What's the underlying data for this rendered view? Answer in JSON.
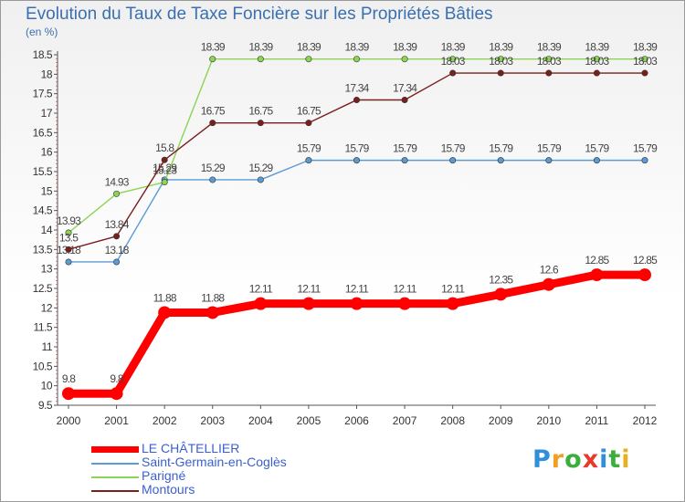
{
  "title": "Evolution du Taux de Taxe Foncière sur les Propriétés Bâties",
  "unit_label": "(en %)",
  "logo": {
    "letters": [
      {
        "ch": "P",
        "color": "#2f8fd8"
      },
      {
        "ch": "r",
        "color": "#f0a020"
      },
      {
        "ch": "o",
        "color": "#3cae3c"
      },
      {
        "ch": "x",
        "color": "#e83a2a"
      },
      {
        "ch": "i",
        "color": "#2f8fd8"
      },
      {
        "ch": "t",
        "color": "#3cae3c"
      },
      {
        "ch": "i",
        "color": "#e8b020"
      }
    ]
  },
  "chart_data": {
    "type": "line",
    "title": "Evolution du Taux de Taxe Foncière sur les Propriétés Bâties",
    "ylabel": "(en %)",
    "xlabel": "",
    "ylim": [
      9.5,
      18.5
    ],
    "ytick_step": 0.5,
    "yticks": [
      "9.5",
      "10",
      "10.5",
      "11",
      "11.5",
      "12",
      "12.5",
      "13",
      "13.5",
      "14",
      "14.5",
      "15",
      "15.5",
      "16",
      "16.5",
      "17",
      "17.5",
      "18",
      "18.5"
    ],
    "x": [
      "2000",
      "2001",
      "2002",
      "2003",
      "2004",
      "2005",
      "2006",
      "2007",
      "2008",
      "2009",
      "2010",
      "2011",
      "2012"
    ],
    "grid": false,
    "legend_position": "bottom-left",
    "series": [
      {
        "name": "LE CHÂTELLIER",
        "color": "#ff0000",
        "values": [
          9.8,
          9.8,
          11.88,
          11.88,
          12.11,
          12.11,
          12.11,
          12.11,
          12.11,
          12.35,
          12.6,
          12.85,
          12.85
        ],
        "labels": [
          "9.8",
          "9.8",
          "11.88",
          "11.88",
          "12.11",
          "12.11",
          "12.11",
          "12.11",
          "12.11",
          "12.35",
          "12.6",
          "12.85",
          "12.85"
        ]
      },
      {
        "name": "Saint-Germain-en-Coglès",
        "color": "#5b9bd5",
        "values": [
          13.18,
          13.18,
          15.29,
          15.29,
          15.29,
          15.79,
          15.79,
          15.79,
          15.79,
          15.79,
          15.79,
          15.79,
          15.79
        ],
        "labels": [
          "13.18",
          "13.18",
          "15.29",
          "15.29",
          "15.29",
          "15.79",
          "15.79",
          "15.79",
          "15.79",
          "15.79",
          "15.79",
          "15.79",
          "15.79"
        ]
      },
      {
        "name": "Parigné",
        "color": "#8bd455",
        "values": [
          13.93,
          14.93,
          15.23,
          18.39,
          18.39,
          18.39,
          18.39,
          18.39,
          18.39,
          18.39,
          18.39,
          18.39,
          18.39
        ],
        "labels": [
          "13.93",
          "14.93",
          "15.23",
          "18.39",
          "18.39",
          "18.39",
          "18.39",
          "18.39",
          "18.39",
          "18.39",
          "18.39",
          "18.39",
          "18.39"
        ]
      },
      {
        "name": "Montours",
        "color": "#7a1e1e",
        "values": [
          13.5,
          13.84,
          15.8,
          16.75,
          16.75,
          16.75,
          17.34,
          17.34,
          18.03,
          18.03,
          18.03,
          18.03,
          18.03
        ],
        "labels": [
          "13.5",
          "13.84",
          "15.8",
          "16.75",
          "16.75",
          "16.75",
          "17.34",
          "17.34",
          "18.03",
          "18.03",
          "18.03",
          "18.03",
          "18.03"
        ]
      }
    ]
  }
}
